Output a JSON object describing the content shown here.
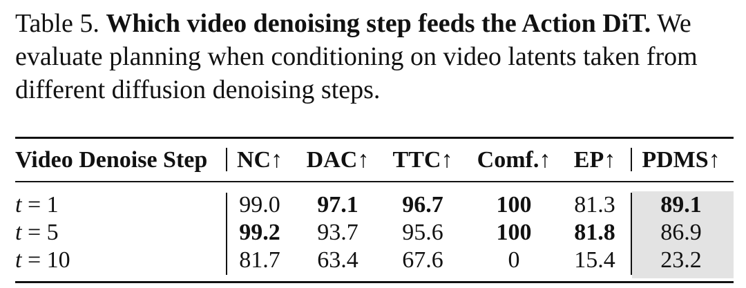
{
  "caption": {
    "label": "Table 5.",
    "title": "Which video denoising step feeds the Action DiT.",
    "line1_rest": "We",
    "line2": "evaluate planning when conditioning on video latents taken from",
    "line3": "different diffusion denoising steps."
  },
  "table": {
    "headers": [
      "Video Denoise Step",
      "NC↑",
      "DAC↑",
      "TTC↑",
      "Comf.↑",
      "EP↑",
      "PDMS↑"
    ],
    "rows": [
      {
        "step": {
          "var": "t",
          "eq": "=",
          "num": "1"
        },
        "cells": [
          "99.0",
          "97.1",
          "96.7",
          "100",
          "81.3",
          "89.1"
        ],
        "bold": [
          false,
          true,
          true,
          true,
          false,
          true
        ]
      },
      {
        "step": {
          "var": "t",
          "eq": "=",
          "num": "5"
        },
        "cells": [
          "99.2",
          "93.7",
          "95.6",
          "100",
          "81.8",
          "86.9"
        ],
        "bold": [
          true,
          false,
          false,
          true,
          true,
          false
        ]
      },
      {
        "step": {
          "var": "t",
          "eq": "=",
          "num": "10"
        },
        "cells": [
          "81.7",
          "63.4",
          "67.6",
          "0",
          "15.4",
          "23.2"
        ],
        "bold": [
          false,
          false,
          false,
          false,
          false,
          false
        ]
      }
    ],
    "highlight_color": "#e3e3e3"
  }
}
